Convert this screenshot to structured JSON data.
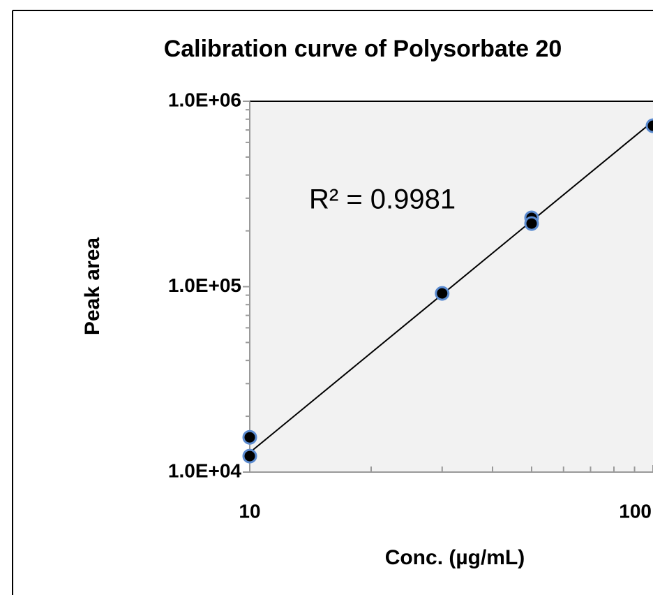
{
  "chart_data": {
    "type": "scatter",
    "title": "Calibration curve of Polysorbate 20",
    "x_label": "Conc. (µg/mL)",
    "y_label": "Peak area",
    "annotation": "R² = 0.9981",
    "x": [
      10,
      10,
      30,
      50,
      50,
      100
    ],
    "values": [
      15400,
      12200,
      92000,
      235000,
      219000,
      738000
    ],
    "color": "#000000",
    "edge_color": "#5b8bd0",
    "trendline": {
      "x": [
        10,
        100
      ],
      "values": [
        12750,
        780000
      ],
      "color": "#000000"
    },
    "x_log": true,
    "y_log": true,
    "xlim": [
      10,
      100
    ],
    "ylim": [
      10000,
      1000000
    ],
    "xticks": [
      10,
      100
    ],
    "yticks": [
      {
        "value": 10000,
        "label": "1.0E+04"
      },
      {
        "value": 100000,
        "label": "1.0E+05"
      },
      {
        "value": 1000000,
        "label": "1.0E+06"
      }
    ],
    "xminor": [
      20,
      30,
      40,
      50,
      60,
      70,
      80,
      90
    ],
    "yminor": [
      20000,
      30000,
      40000,
      50000,
      60000,
      70000,
      80000,
      90000,
      200000,
      300000,
      400000,
      500000,
      600000,
      700000,
      800000,
      900000
    ],
    "plot_background": "#f2f2f2"
  }
}
